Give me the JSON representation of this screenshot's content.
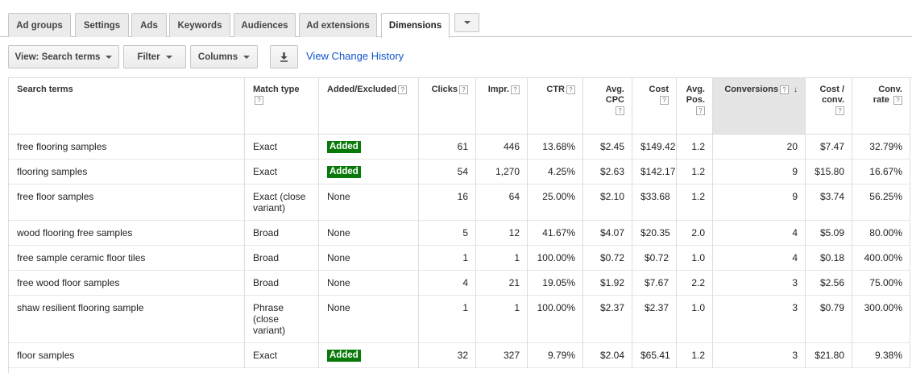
{
  "tabs": [
    "Ad groups",
    "Settings",
    "Ads",
    "Keywords",
    "Audiences",
    "Ad extensions",
    "Dimensions"
  ],
  "active_tab": "Dimensions",
  "toolbar": {
    "view_label": "View: Search terms",
    "filter_label": "Filter",
    "columns_label": "Columns",
    "change_history_link": "View Change History"
  },
  "icons": {
    "download": "download-icon",
    "dropdown": "chevron-down-icon",
    "sort": "sort-desc-icon",
    "help": "help-icon"
  },
  "colors": {
    "added_badge": "#097a09",
    "link": "#1155cc",
    "sorted_header": "#e5e5e5"
  },
  "help_glyph": "?",
  "sort_glyph": "↓",
  "table": {
    "columns": [
      {
        "key": "term",
        "l1": "Search terms",
        "l2": "",
        "help": false
      },
      {
        "key": "match",
        "l1": "Match type",
        "l2": "",
        "help": true
      },
      {
        "key": "added",
        "l1": "Added/Excluded",
        "l2": "",
        "help": true
      },
      {
        "key": "clicks",
        "l1": "Clicks",
        "l2": "",
        "help": true
      },
      {
        "key": "impr",
        "l1": "Impr.",
        "l2": "",
        "help": true
      },
      {
        "key": "ctr",
        "l1": "CTR",
        "l2": "",
        "help": true
      },
      {
        "key": "cpc",
        "l1": "Avg.",
        "l2": "CPC",
        "help": true
      },
      {
        "key": "cost",
        "l1": "Cost",
        "l2": "",
        "help": true
      },
      {
        "key": "pos",
        "l1": "Avg.",
        "l2": "Pos.",
        "help": true
      },
      {
        "key": "conv",
        "l1": "Conversions",
        "l2": "",
        "help": true
      },
      {
        "key": "costconv",
        "l1": "Cost /",
        "l2": "conv.",
        "help": true
      },
      {
        "key": "rate",
        "l1": "Conv.",
        "l2": "rate",
        "help": true
      }
    ],
    "rows": [
      {
        "term": "free flooring samples",
        "match": [
          "Exact"
        ],
        "added": "Added",
        "clicks": "61",
        "impr": "446",
        "ctr": "13.68%",
        "cpc": "$2.45",
        "cost": "$149.42",
        "pos": "1.2",
        "conv": "20",
        "costconv": "$7.47",
        "rate": "32.79%"
      },
      {
        "term": "flooring samples",
        "match": [
          "Exact"
        ],
        "added": "Added",
        "clicks": "54",
        "impr": "1,270",
        "ctr": "4.25%",
        "cpc": "$2.63",
        "cost": "$142.17",
        "pos": "1.2",
        "conv": "9",
        "costconv": "$15.80",
        "rate": "16.67%"
      },
      {
        "term": "free floor samples",
        "match": [
          "Exact (close",
          "variant)"
        ],
        "added": "None",
        "clicks": "16",
        "impr": "64",
        "ctr": "25.00%",
        "cpc": "$2.10",
        "cost": "$33.68",
        "pos": "1.2",
        "conv": "9",
        "costconv": "$3.74",
        "rate": "56.25%"
      },
      {
        "term": "wood flooring free samples",
        "match": [
          "Broad"
        ],
        "added": "None",
        "clicks": "5",
        "impr": "12",
        "ctr": "41.67%",
        "cpc": "$4.07",
        "cost": "$20.35",
        "pos": "2.0",
        "conv": "4",
        "costconv": "$5.09",
        "rate": "80.00%"
      },
      {
        "term": "free sample ceramic floor tiles",
        "match": [
          "Broad"
        ],
        "added": "None",
        "clicks": "1",
        "impr": "1",
        "ctr": "100.00%",
        "cpc": "$0.72",
        "cost": "$0.72",
        "pos": "1.0",
        "conv": "4",
        "costconv": "$0.18",
        "rate": "400.00%"
      },
      {
        "term": "free wood floor samples",
        "match": [
          "Broad"
        ],
        "added": "None",
        "clicks": "4",
        "impr": "21",
        "ctr": "19.05%",
        "cpc": "$1.92",
        "cost": "$7.67",
        "pos": "2.2",
        "conv": "3",
        "costconv": "$2.56",
        "rate": "75.00%"
      },
      {
        "term": "shaw resilient flooring sample",
        "match": [
          "Phrase",
          "(close",
          "variant)"
        ],
        "added": "None",
        "clicks": "1",
        "impr": "1",
        "ctr": "100.00%",
        "cpc": "$2.37",
        "cost": "$2.37",
        "pos": "1.0",
        "conv": "3",
        "costconv": "$0.79",
        "rate": "300.00%"
      },
      {
        "term": "floor samples",
        "match": [
          "Exact"
        ],
        "added": "Added",
        "clicks": "32",
        "impr": "327",
        "ctr": "9.79%",
        "cpc": "$2.04",
        "cost": "$65.41",
        "pos": "1.2",
        "conv": "3",
        "costconv": "$21.80",
        "rate": "9.38%"
      }
    ]
  }
}
